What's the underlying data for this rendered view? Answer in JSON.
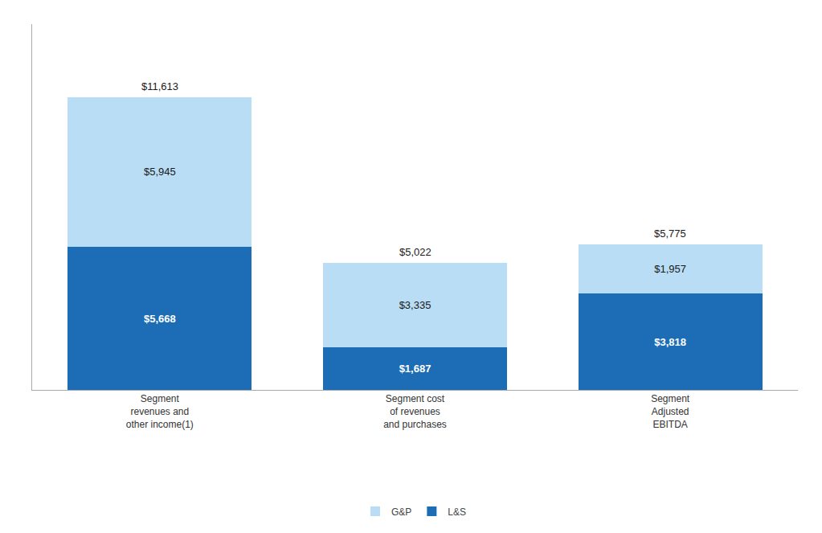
{
  "chart_data": {
    "type": "bar",
    "stacked": true,
    "categories": [
      "Segment\nrevenues and\nother income(1)",
      "Segment cost\nof revenues\nand purchases",
      "Segment\nAdjusted\nEBITDA"
    ],
    "series": [
      {
        "name": "L&S",
        "color": "#1C6DB5",
        "values": [
          5668,
          1687,
          3818
        ],
        "value_labels": [
          "$5,668",
          "$1,687",
          "$3,818"
        ]
      },
      {
        "name": "G&P",
        "color": "#B8DDF5",
        "values": [
          5945,
          3335,
          1957
        ],
        "value_labels": [
          "$5,945",
          "$3,335",
          "$1,957"
        ]
      }
    ],
    "totals": {
      "values": [
        11613,
        5022,
        5775
      ],
      "value_labels": [
        "$11,613",
        "$5,022",
        "$5,775"
      ]
    },
    "ylim": [
      0,
      14500
    ],
    "data_labels": true,
    "legend": "bottom",
    "grid": false,
    "tick_labels": "x"
  }
}
